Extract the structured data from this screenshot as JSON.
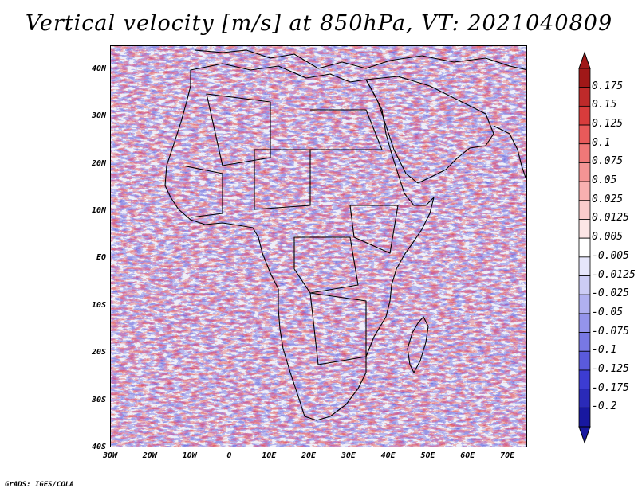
{
  "title": "Vertical velocity [m/s] at 850hPa, VT: 2021040809",
  "credit": "GrADS: IGES/COLA",
  "map": {
    "lat_labels": [
      "40N",
      "30N",
      "20N",
      "10N",
      "EQ",
      "10S",
      "20S",
      "30S",
      "40S"
    ],
    "lon_labels": [
      "30W",
      "20W",
      "10W",
      "0",
      "10E",
      "20E",
      "30E",
      "40E",
      "50E",
      "60E",
      "70E"
    ],
    "lat_range": [
      -40,
      45
    ],
    "lon_range": [
      -30,
      75
    ]
  },
  "colorbar": {
    "labels": [
      "0.175",
      "0.15",
      "0.125",
      "0.1",
      "0.075",
      "0.05",
      "0.025",
      "0.0125",
      "0.005",
      "-0.005",
      "-0.0125",
      "-0.025",
      "-0.05",
      "-0.075",
      "-0.1",
      "-0.125",
      "-0.175",
      "-0.2"
    ],
    "colors": [
      "#a01818",
      "#be2a2a",
      "#d83c3c",
      "#e85a5a",
      "#f07878",
      "#f49494",
      "#f8b0b0",
      "#fbcccc",
      "#fde6e6",
      "#ffffff",
      "#e6e6fb",
      "#ccccf5",
      "#b0b0f0",
      "#9494eb",
      "#7878e4",
      "#5a5adc",
      "#3c3cd2",
      "#2a2ab8",
      "#1818a0"
    ]
  }
}
